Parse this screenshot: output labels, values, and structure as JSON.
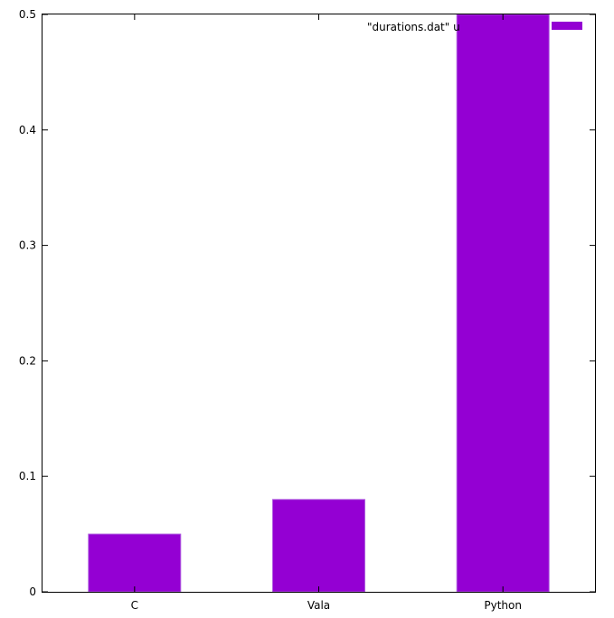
{
  "chart_data": {
    "type": "bar",
    "categories": [
      "C",
      "Vala",
      "Python"
    ],
    "values": [
      0.05,
      0.08,
      0.5
    ],
    "title": "",
    "xlabel": "",
    "ylabel": "",
    "ylim": [
      0,
      0.5
    ],
    "yticks": [
      "0",
      "0.1",
      "0.2",
      "0.3",
      "0.4",
      "0.5"
    ],
    "legend": {
      "label": "\"durations.dat\" u",
      "position": "top-right"
    },
    "bar_color": "#9400d3",
    "grid": false
  }
}
